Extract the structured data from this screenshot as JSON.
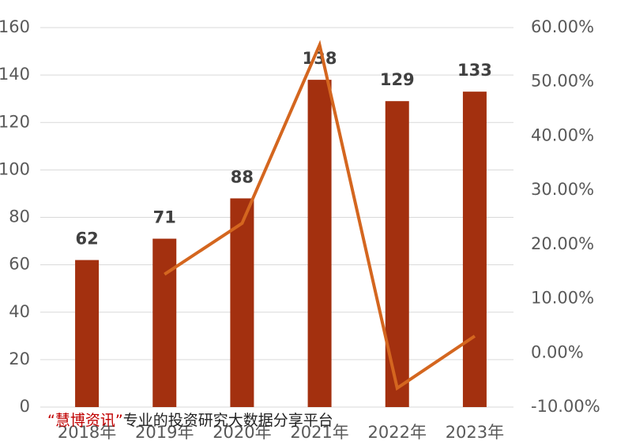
{
  "chart_data": {
    "type": "bar",
    "categories": [
      "2018年",
      "2019年",
      "2020年",
      "2021年",
      "2022年",
      "2023年"
    ],
    "series": [
      {
        "type": "bar",
        "color": "#a3300f",
        "values": [
          62,
          71,
          88,
          138,
          129,
          133
        ]
      },
      {
        "type": "line",
        "axis": "y2",
        "color": "#d4661f",
        "values": [
          null,
          14.5,
          23.9,
          56.8,
          -6.5,
          3.1
        ]
      }
    ],
    "ylim": [
      0,
      160
    ],
    "yticks": [
      0,
      20,
      40,
      60,
      80,
      100,
      120,
      140,
      160
    ],
    "y2lim": [
      -10,
      60
    ],
    "y2ticks": [
      {
        "value": -10,
        "label": "-10.00%"
      },
      {
        "value": 0,
        "label": "0.00%"
      },
      {
        "value": 10,
        "label": "10.00%"
      },
      {
        "value": 20,
        "label": "20.00%"
      },
      {
        "value": 30,
        "label": "30.00%"
      },
      {
        "value": 40,
        "label": "40.00%"
      },
      {
        "value": 50,
        "label": "50.00%"
      },
      {
        "value": 60,
        "label": "60.00%"
      }
    ],
    "grid": true
  },
  "watermark": {
    "brand": "“慧博资讯”",
    "text": "专业的投资研究大数据分享平台"
  }
}
